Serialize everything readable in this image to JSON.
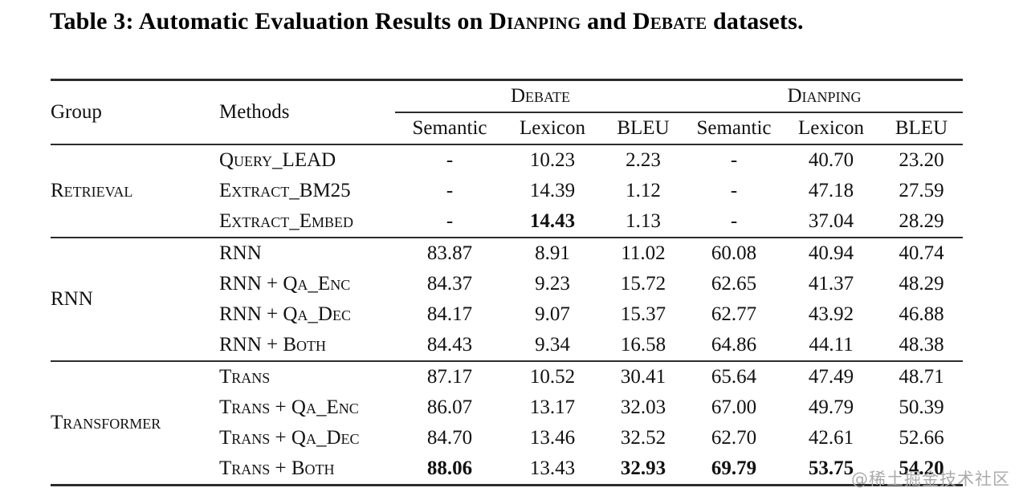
{
  "title": {
    "part1": "Table 3: Automatic Evaluation Results on ",
    "dataset1": "Dianping",
    "part2": " and ",
    "dataset2": "Debate",
    "part3": " datasets."
  },
  "table": {
    "header": {
      "group": "Group",
      "methods": "Methods",
      "datasets": [
        {
          "name": "Debate",
          "subcols": [
            "Semantic",
            "Lexicon",
            "BLEU"
          ]
        },
        {
          "name": "Dianping",
          "subcols": [
            "Semantic",
            "Lexicon",
            "BLEU"
          ]
        }
      ]
    },
    "groups": [
      {
        "name": "Retrieval",
        "rows": [
          {
            "method": "Query_LEAD",
            "values": [
              "-",
              "10.23",
              "2.23",
              "-",
              "40.70",
              "23.20"
            ],
            "bold": []
          },
          {
            "method": "Extract_BM25",
            "values": [
              "-",
              "14.39",
              "1.12",
              "-",
              "47.18",
              "27.59"
            ],
            "bold": []
          },
          {
            "method": "Extract_Embed",
            "values": [
              "-",
              "14.43",
              "1.13",
              "-",
              "37.04",
              "28.29"
            ],
            "bold": [
              1
            ]
          }
        ]
      },
      {
        "name": "RNN",
        "rows": [
          {
            "method": "RNN",
            "values": [
              "83.87",
              "8.91",
              "11.02",
              "60.08",
              "40.94",
              "40.74"
            ],
            "bold": []
          },
          {
            "method": "RNN + Qa_Enc",
            "values": [
              "84.37",
              "9.23",
              "15.72",
              "62.65",
              "41.37",
              "48.29"
            ],
            "bold": []
          },
          {
            "method": "RNN + Qa_Dec",
            "values": [
              "84.17",
              "9.07",
              "15.37",
              "62.77",
              "43.92",
              "46.88"
            ],
            "bold": []
          },
          {
            "method": "RNN + Both",
            "values": [
              "84.43",
              "9.34",
              "16.58",
              "64.86",
              "44.11",
              "48.38"
            ],
            "bold": []
          }
        ]
      },
      {
        "name": "Transformer",
        "rows": [
          {
            "method": "Trans",
            "values": [
              "87.17",
              "10.52",
              "30.41",
              "65.64",
              "47.49",
              "48.71"
            ],
            "bold": []
          },
          {
            "method": "Trans + Qa_Enc",
            "values": [
              "86.07",
              "13.17",
              "32.03",
              "67.00",
              "49.79",
              "50.39"
            ],
            "bold": []
          },
          {
            "method": "Trans + Qa_Dec",
            "values": [
              "84.70",
              "13.46",
              "32.52",
              "62.70",
              "42.61",
              "52.66"
            ],
            "bold": []
          },
          {
            "method": "Trans + Both",
            "values": [
              "88.06",
              "13.43",
              "32.93",
              "69.79",
              "53.75",
              "54.20"
            ],
            "bold": [
              0,
              2,
              3,
              4,
              5
            ]
          }
        ]
      }
    ]
  },
  "watermark": {
    "text": "@稀土掘金技术社区",
    "color": "#ababab"
  }
}
